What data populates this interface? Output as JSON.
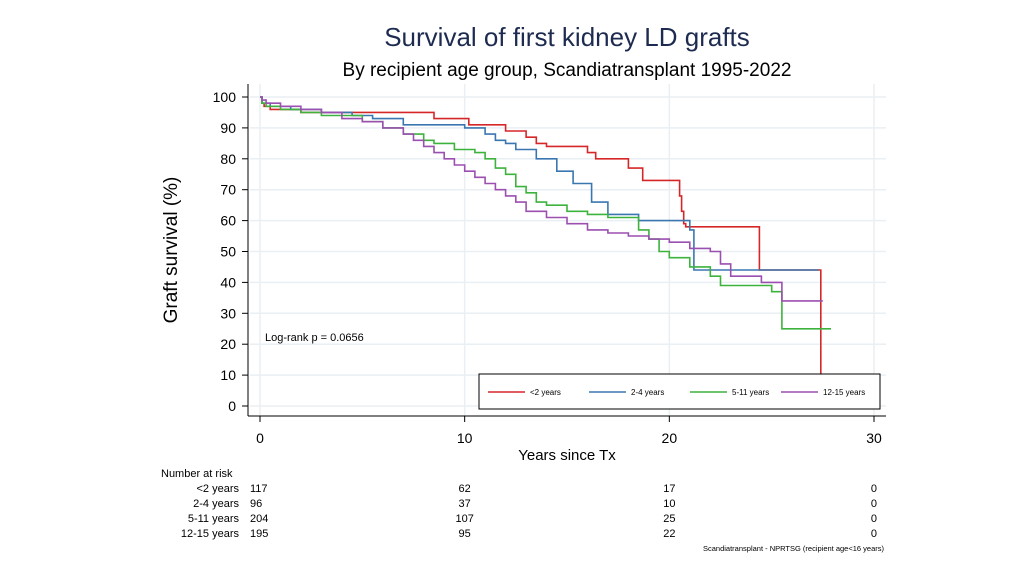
{
  "chart_data": {
    "type": "line",
    "title": "Survival of first kidney LD grafts",
    "subtitle": "By recipient age group, Scandiatransplant 1995-2022",
    "xlabel": "Years since Tx",
    "ylabel": "Graft survival (%)",
    "xlim": [
      0,
      30
    ],
    "ylim": [
      0,
      100
    ],
    "xticks": [
      0,
      10,
      20,
      30
    ],
    "yticks": [
      0,
      10,
      20,
      30,
      40,
      50,
      60,
      70,
      80,
      90,
      100
    ],
    "grid": true,
    "legend_position": "bottom-right inside",
    "annotation": "Log-rank p = 0.0656",
    "series": [
      {
        "name": "<2 years",
        "color": "#d62728",
        "x": [
          0,
          0.1,
          0.2,
          0.5,
          1.0,
          2.0,
          7.5,
          8.5,
          10.0,
          10.2,
          12.0,
          13.0,
          13.5,
          14.0,
          16.0,
          16.4,
          18.0,
          18.7,
          20.0,
          20.5,
          20.6,
          20.7,
          20.8,
          24.4,
          24.4,
          27.4,
          27.4
        ],
        "y": [
          100,
          98,
          97,
          96,
          96,
          95,
          95,
          93,
          93,
          91,
          89,
          87,
          85,
          84,
          82,
          80,
          77,
          73,
          73,
          68,
          63,
          59,
          58,
          58,
          44,
          44,
          10
        ]
      },
      {
        "name": "2-4 years",
        "color": "#3a77b0",
        "x": [
          0,
          0.1,
          0.5,
          1.5,
          3.0,
          4.5,
          5.5,
          7.0,
          8.0,
          10.0,
          11.0,
          11.5,
          12.0,
          12.5,
          13.5,
          14.5,
          15.3,
          16.2,
          17.0,
          18.5,
          21.0,
          21.2,
          23.0,
          27.3
        ],
        "y": [
          100,
          98,
          97,
          96,
          95,
          94,
          93,
          91,
          91,
          90,
          88,
          86,
          85,
          83,
          80,
          76,
          72,
          66,
          62,
          60,
          57,
          44,
          44,
          44
        ]
      },
      {
        "name": "5-11 years",
        "color": "#3db33d",
        "x": [
          0,
          0.1,
          0.3,
          1.0,
          2.0,
          3.0,
          5.0,
          6.0,
          7.0,
          8.0,
          8.5,
          9.5,
          10.5,
          11.0,
          11.5,
          12.0,
          12.5,
          13.0,
          13.5,
          14.0,
          15.0,
          16.0,
          17.0,
          17.5,
          18.5,
          19.0,
          19.5,
          20.0,
          21.0,
          22.0,
          22.5,
          25.0,
          25.5,
          27.0,
          27.9
        ],
        "y": [
          100,
          98,
          97,
          96,
          95,
          94,
          92,
          90,
          88,
          86,
          85,
          83,
          82,
          80,
          77,
          75,
          71,
          69,
          66,
          65,
          63,
          62,
          61,
          61,
          57,
          54,
          50,
          48,
          45,
          42,
          39,
          37,
          25,
          25,
          25
        ]
      },
      {
        "name": "12-15 years",
        "color": "#9b4fb0",
        "x": [
          0,
          0.1,
          0.3,
          1.0,
          2.0,
          3.0,
          4.0,
          5.0,
          6.0,
          7.0,
          7.5,
          8.0,
          8.5,
          9.0,
          9.5,
          10.0,
          10.5,
          11.0,
          11.5,
          12.0,
          12.5,
          13.0,
          14.0,
          15.0,
          16.0,
          17.0,
          18.0,
          19.0,
          20.0,
          21.0,
          22.0,
          22.5,
          23.0,
          24.5,
          25.5,
          27.5
        ],
        "y": [
          100,
          99,
          98,
          97,
          96,
          95,
          93,
          92,
          90,
          88,
          86,
          84,
          82,
          80,
          78,
          76,
          74,
          72,
          70,
          68,
          66,
          63,
          61,
          59,
          57,
          56,
          55,
          54,
          53,
          51,
          50,
          46,
          42,
          40,
          34,
          34
        ]
      }
    ],
    "risk_table": {
      "heading": "Number at risk",
      "columns_years": [
        0,
        10,
        20,
        30
      ],
      "rows": [
        {
          "label": "<2 years",
          "values": [
            "117",
            "62",
            "17",
            "0"
          ]
        },
        {
          "label": "2-4 years",
          "values": [
            "96",
            "37",
            "10",
            "0"
          ]
        },
        {
          "label": "5-11 years",
          "values": [
            "204",
            "107",
            "25",
            "0"
          ]
        },
        {
          "label": "12-15 years",
          "values": [
            "195",
            "95",
            "22",
            "0"
          ]
        }
      ]
    },
    "credit": "Scandiatransplant - NPRTSG (recipient age<16 years)"
  }
}
